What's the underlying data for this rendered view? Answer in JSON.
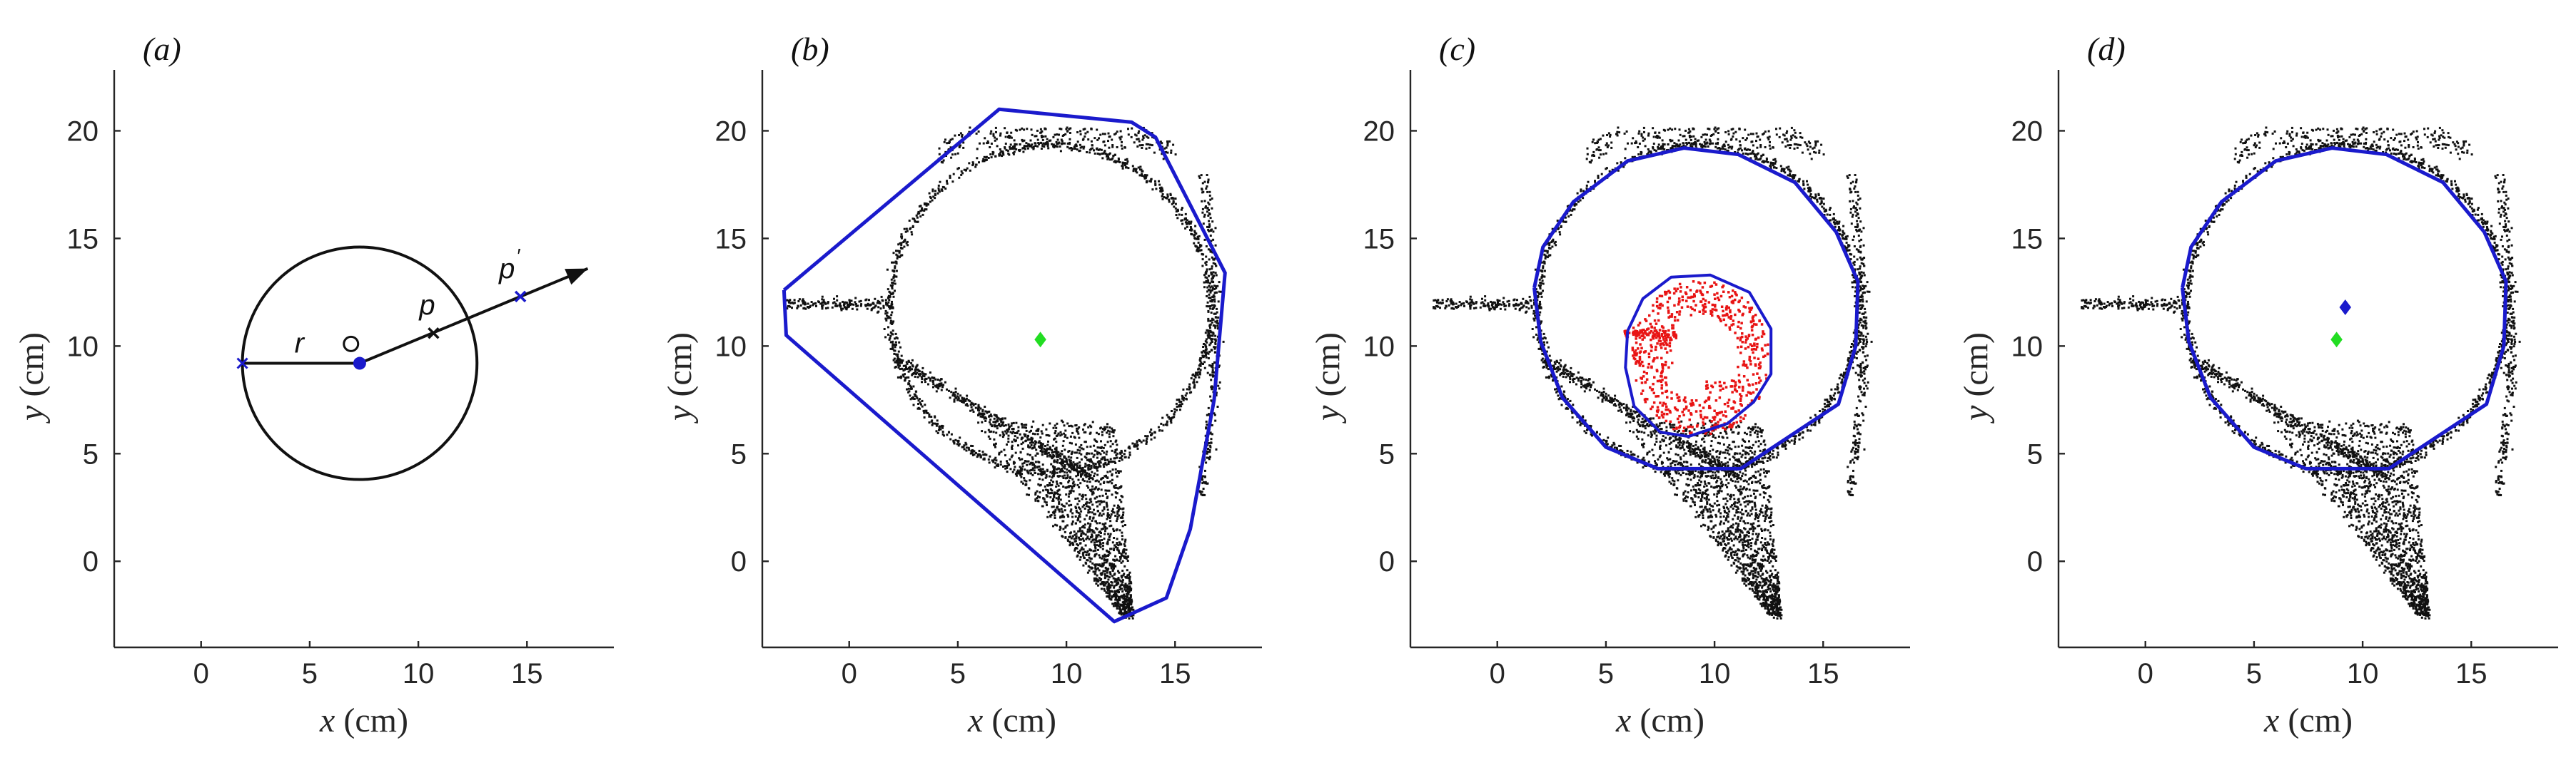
{
  "figure": {
    "xlabel_var": "x",
    "xlabel_unit": " (cm)",
    "ylabel_var": "y",
    "ylabel_unit": " (cm)"
  },
  "chart_data": [
    {
      "panel": "(a)",
      "type": "scatter",
      "xlim": [
        -4,
        19
      ],
      "ylim": [
        -4,
        22.5
      ],
      "xticks": [
        0,
        5,
        10,
        15
      ],
      "yticks": [
        0,
        5,
        10,
        15,
        20
      ],
      "circle": {
        "cx": 7.3,
        "cy": 9.2,
        "r": 5.4,
        "color": "#111111"
      },
      "center_point": {
        "x": 7.3,
        "y": 9.2,
        "color": "#1a1acc"
      },
      "open_point": {
        "x": 6.9,
        "y": 10.1
      },
      "radius_line": {
        "from": [
          1.9,
          9.2
        ],
        "to": [
          7.3,
          9.2
        ],
        "label": "r"
      },
      "arrow": {
        "from": [
          7.3,
          9.2
        ],
        "to": [
          17.8,
          13.6
        ]
      },
      "point_p": {
        "x": 10.7,
        "y": 10.6,
        "label": "p"
      },
      "point_p_prime": {
        "x": 14.7,
        "y": 12.3,
        "label": "p",
        "prime": "′",
        "color": "#1a1acc"
      }
    },
    {
      "panel": "(b)",
      "type": "scatter",
      "xlim": [
        -4,
        19
      ],
      "ylim": [
        -4,
        22.5
      ],
      "xticks": [
        0,
        5,
        10,
        15
      ],
      "yticks": [
        0,
        5,
        10,
        15,
        20
      ],
      "hull": [
        [
          -3,
          12.6
        ],
        [
          -2.9,
          10.5
        ],
        [
          12.2,
          -2.8
        ],
        [
          14.6,
          -1.7
        ],
        [
          15.7,
          1.5
        ],
        [
          16.8,
          7.5
        ],
        [
          17.3,
          13.4
        ],
        [
          14.1,
          19.7
        ],
        [
          13,
          20.4
        ],
        [
          6.9,
          21
        ],
        [
          -3,
          12.6
        ]
      ],
      "hull_color": "#1a1acc",
      "centroid": {
        "x": 8.8,
        "y": 10.3,
        "color": "#22dd22"
      },
      "scatter_color": "#111111"
    },
    {
      "panel": "(c)",
      "type": "scatter",
      "xlim": [
        -4,
        19
      ],
      "ylim": [
        -4,
        22.5
      ],
      "xticks": [
        0,
        5,
        10,
        15
      ],
      "yticks": [
        0,
        5,
        10,
        15,
        20
      ],
      "boundary": [
        [
          1.7,
          12.7
        ],
        [
          2.1,
          14.6
        ],
        [
          3.5,
          16.7
        ],
        [
          6,
          18.6
        ],
        [
          8.6,
          19.2
        ],
        [
          11.1,
          18.9
        ],
        [
          13.7,
          17.6
        ],
        [
          15.6,
          15.3
        ],
        [
          16.6,
          13
        ],
        [
          16.5,
          10
        ],
        [
          15.7,
          7.3
        ],
        [
          15.1,
          6.9
        ],
        [
          11.2,
          4.3
        ],
        [
          7.4,
          4.3
        ],
        [
          5,
          5.3
        ],
        [
          3,
          7.6
        ],
        [
          2,
          10.2
        ],
        [
          1.7,
          12.7
        ]
      ],
      "boundary_color": "#1a1acc",
      "inner_boundary": [
        [
          6,
          10.7
        ],
        [
          6.7,
          12.2
        ],
        [
          8,
          13.2
        ],
        [
          9.8,
          13.3
        ],
        [
          11.6,
          12.5
        ],
        [
          12.6,
          10.8
        ],
        [
          12.6,
          8.7
        ],
        [
          11.8,
          7.4
        ],
        [
          10.6,
          6.4
        ],
        [
          8.8,
          5.8
        ],
        [
          7.5,
          6
        ],
        [
          6.3,
          7.2
        ],
        [
          5.9,
          9
        ],
        [
          6,
          10.7
        ]
      ],
      "inner_color": "#e81414",
      "scatter_color": "#111111"
    },
    {
      "panel": "(d)",
      "type": "scatter",
      "xlim": [
        -4,
        19
      ],
      "ylim": [
        -4,
        22.5
      ],
      "xticks": [
        0,
        5,
        10,
        15
      ],
      "yticks": [
        0,
        5,
        10,
        15,
        20
      ],
      "boundary": [
        [
          1.7,
          12.7
        ],
        [
          2.1,
          14.6
        ],
        [
          3.5,
          16.7
        ],
        [
          6,
          18.6
        ],
        [
          8.6,
          19.2
        ],
        [
          11.1,
          18.9
        ],
        [
          13.7,
          17.6
        ],
        [
          15.6,
          15.3
        ],
        [
          16.6,
          13
        ],
        [
          16.5,
          10
        ],
        [
          15.7,
          7.3
        ],
        [
          15.1,
          6.9
        ],
        [
          11.2,
          4.3
        ],
        [
          7.4,
          4.3
        ],
        [
          5,
          5.3
        ],
        [
          3,
          7.6
        ],
        [
          2,
          10.2
        ],
        [
          1.7,
          12.7
        ]
      ],
      "boundary_color": "#1a1acc",
      "centroid": {
        "x": 8.8,
        "y": 10.3,
        "color": "#22dd22"
      },
      "centroid2": {
        "x": 9.2,
        "y": 11.8,
        "color": "#1a1acc"
      },
      "scatter_color": "#111111"
    }
  ]
}
